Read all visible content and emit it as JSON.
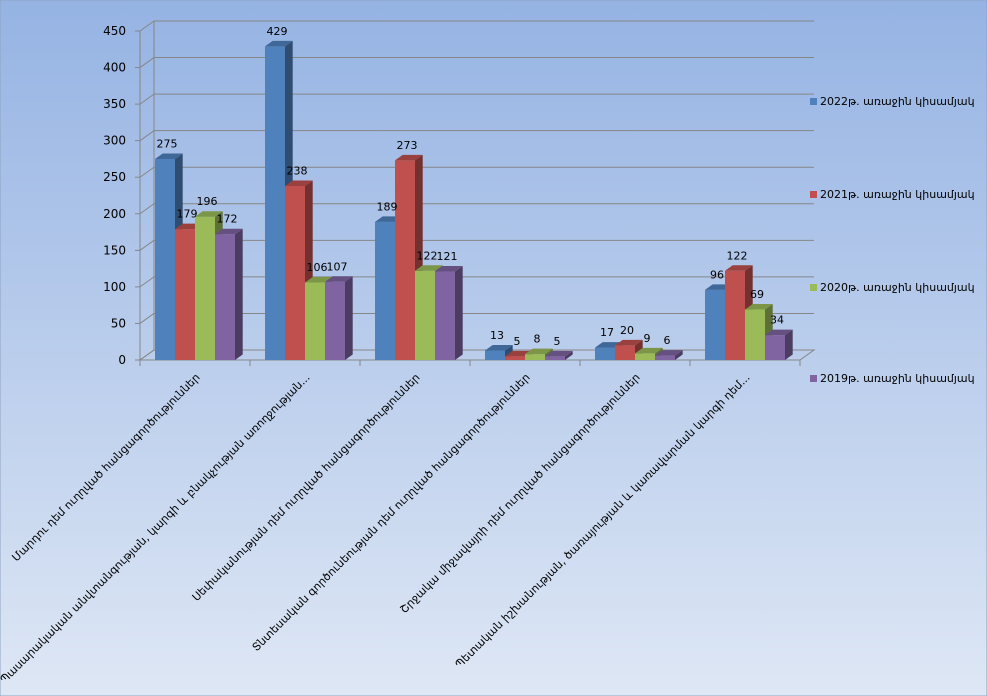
{
  "chart_data": {
    "type": "bar",
    "categories": [
      "Մարդու դեմ ուղղված հանցագործություններ",
      "Պասարակական անվտանգության, կարգի և բնակչության առողջության...",
      "Սեփականության դեմ ուղղված հանցագործություններ",
      "Տնտեսական գործունեության դեմ ուղղված հանցագործություններ",
      "Շրջակա միջավայրի դեմ ուղղված հանցագործություններ",
      "Պետական իշխանության, ծառայության և կառավարման կարգի դեմ..."
    ],
    "series": [
      {
        "name": "2022թ. առաջին կիսամյակ",
        "color": "#4F81BD",
        "values": [
          275,
          429,
          189,
          13,
          17,
          96
        ]
      },
      {
        "name": "2021թ. առաջին կիսամյակ",
        "color": "#C0504D",
        "values": [
          179,
          238,
          273,
          5,
          20,
          122
        ]
      },
      {
        "name": "2020թ. առաջին կիսամյակ",
        "color": "#9BBB59",
        "values": [
          196,
          106,
          122,
          8,
          9,
          69
        ]
      },
      {
        "name": "2019թ. առաջին կիսամյակ",
        "color": "#8064A2",
        "values": [
          172,
          107,
          121,
          5,
          6,
          34
        ]
      }
    ],
    "ylim": [
      0,
      450
    ],
    "yticks": [
      0,
      50,
      100,
      150,
      200,
      250,
      300,
      350,
      400,
      450
    ],
    "grid": true,
    "legend": "right",
    "style": "3d-clustered-bar"
  }
}
